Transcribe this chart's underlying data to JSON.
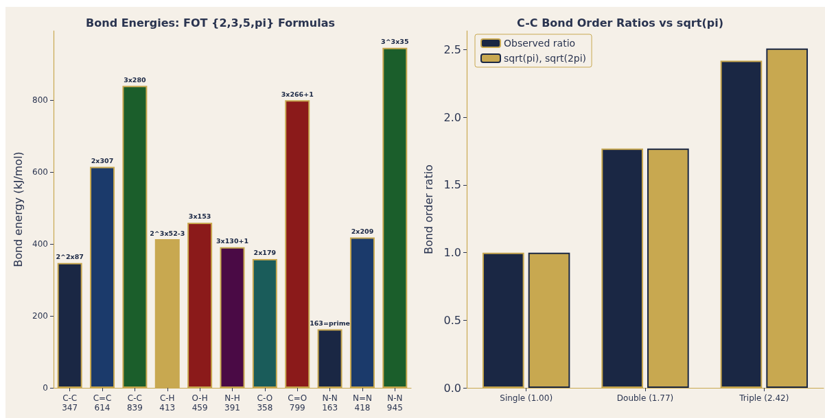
{
  "chart_data": [
    {
      "type": "bar",
      "title": "Bond Energies: FOT {2,3,5,pi} Formulas",
      "ylabel": "Bond energy (kJ/mol)",
      "categories": [
        "C-C\n347",
        "C=C\n614",
        "C-C\n839",
        "C-H\n413",
        "O-H\n459",
        "N-H\n391",
        "C-O\n358",
        "C=O\n799",
        "N-N\n163",
        "N=N\n418",
        "N-N\n945"
      ],
      "values": [
        347,
        614,
        839,
        413,
        459,
        391,
        358,
        799,
        163,
        418,
        945
      ],
      "colors": [
        "#1a2744",
        "#1b3a6b",
        "#1b5e2b",
        "#c8a850",
        "#8b1a1a",
        "#4a0a45",
        "#1a5c5a",
        "#8b1a1a",
        "#1a2744",
        "#1b3a6b",
        "#1b5e2b"
      ],
      "annotations": [
        {
          "text": "2^2x87",
          "x": "C-C\n347",
          "y": 347
        },
        {
          "text": "2x307",
          "x": "C=C\n614",
          "y": 614
        },
        {
          "text": "3x280",
          "x": "C-C\n839",
          "y": 839
        },
        {
          "text": "2^3x52-3",
          "x": "C-H\n413",
          "y": 413
        },
        {
          "text": "3x153",
          "x": "O-H\n459",
          "y": 459
        },
        {
          "text": "3x130+1",
          "x": "N-H\n391",
          "y": 391
        },
        {
          "text": "2x179",
          "x": "C-O\n358",
          "y": 358
        },
        {
          "text": "3x266+1",
          "x": "C=O\n799",
          "y": 799
        },
        {
          "text": "163=prime",
          "x": "N-N\n163",
          "y": 163
        },
        {
          "text": "2x209",
          "x": "N=N\n418",
          "y": 418
        },
        {
          "text": "3^3x35",
          "x": "N-N\n945",
          "y": 945
        }
      ],
      "ylim": [
        0,
        992
      ],
      "yticks": [
        0,
        200,
        400,
        600,
        800
      ],
      "grid": false,
      "legend": false
    },
    {
      "type": "bar",
      "title": "C-C Bond Order Ratios vs sqrt(pi)",
      "ylabel": "Bond order ratio",
      "categories": [
        "Single (1.00)",
        "Double (1.77)",
        "Triple (2.42)"
      ],
      "series": [
        {
          "name": "Observed ratio",
          "color": "#1a2744",
          "values": [
            1.0,
            1.77,
            2.42
          ]
        },
        {
          "name": "sqrt(pi), sqrt(2pi)",
          "color": "#c8a850",
          "values": [
            1.0,
            1.77,
            2.51
          ]
        }
      ],
      "ylim": [
        0,
        2.64
      ],
      "yticks": [
        {
          "value": 0,
          "label": "0.0"
        },
        {
          "value": 0.5,
          "label": "0.5"
        },
        {
          "value": 1,
          "label": "1.0"
        },
        {
          "value": 1.5,
          "label": "1.5"
        },
        {
          "value": 2,
          "label": "2.0"
        },
        {
          "value": 2.5,
          "label": "2.5"
        }
      ],
      "grid": false,
      "legend": "top left"
    }
  ]
}
